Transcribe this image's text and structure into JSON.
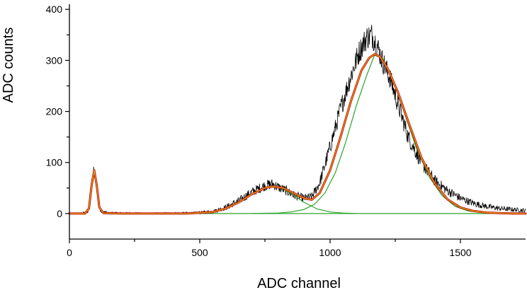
{
  "chart_data": {
    "type": "line",
    "xlabel": "ADC channel",
    "ylabel": "ADC counts",
    "xlim": [
      0,
      1750
    ],
    "ylim": [
      -50,
      410
    ],
    "x_ticks": [
      0,
      500,
      1000,
      1500
    ],
    "x_tick_labels": [
      "0",
      "500",
      "1000",
      "1500"
    ],
    "x_minor_ticks": [
      250,
      750,
      1250
    ],
    "y_ticks": [
      0,
      100,
      200,
      300,
      400
    ],
    "y_tick_labels": [
      "0",
      "100",
      "200",
      "300",
      "400"
    ],
    "y_minor_ticks": [
      50,
      150,
      250,
      350
    ],
    "grid": false,
    "series": [
      {
        "role": "data-histogram",
        "color": "#000000",
        "x": [
          0,
          40,
          70,
          82,
          90,
          95,
          100,
          108,
          120,
          150,
          300,
          480,
          550,
          600,
          650,
          700,
          750,
          780,
          800,
          830,
          860,
          900,
          930,
          960,
          1000,
          1040,
          1080,
          1110,
          1140,
          1160,
          1180,
          1200,
          1230,
          1260,
          1300,
          1350,
          1400,
          1450,
          1500,
          1550,
          1600,
          1650,
          1700,
          1750
        ],
        "y": [
          0,
          0,
          2,
          40,
          80,
          92,
          70,
          30,
          4,
          1,
          0,
          1,
          4,
          12,
          25,
          42,
          55,
          58,
          52,
          45,
          36,
          30,
          33,
          60,
          130,
          205,
          270,
          315,
          345,
          350,
          330,
          300,
          265,
          215,
          150,
          100,
          65,
          45,
          30,
          20,
          14,
          10,
          8,
          6
        ]
      },
      {
        "role": "total-fit",
        "color": "#c80000",
        "x": [
          0,
          60,
          75,
          85,
          95,
          105,
          115,
          130,
          200,
          450,
          550,
          600,
          650,
          700,
          750,
          780,
          820,
          860,
          900,
          930,
          960,
          1000,
          1040,
          1080,
          1120,
          1150,
          1170,
          1190,
          1220,
          1260,
          1300,
          1350,
          1400,
          1450,
          1500,
          1550,
          1600,
          1650,
          1700,
          1750
        ],
        "y": [
          0,
          0,
          10,
          55,
          85,
          55,
          12,
          1,
          0,
          0,
          3,
          10,
          22,
          38,
          50,
          53,
          50,
          40,
          30,
          27,
          40,
          85,
          150,
          220,
          280,
          305,
          312,
          308,
          285,
          238,
          180,
          110,
          60,
          28,
          12,
          5,
          2,
          1,
          0,
          0
        ]
      },
      {
        "role": "fit-component-1",
        "color": "#2aa52a",
        "x": [
          0,
          60,
          75,
          85,
          95,
          105,
          115,
          130,
          200,
          1750
        ],
        "y": [
          0,
          0,
          10,
          55,
          85,
          55,
          12,
          1,
          0,
          0
        ]
      },
      {
        "role": "fit-component-2",
        "color": "#2aa52a",
        "x": [
          400,
          500,
          550,
          600,
          650,
          700,
          750,
          780,
          820,
          860,
          900,
          950,
          1000,
          1050,
          1100
        ],
        "y": [
          0,
          1,
          3,
          10,
          22,
          38,
          50,
          53,
          48,
          36,
          22,
          9,
          3,
          1,
          0
        ]
      },
      {
        "role": "fit-component-3",
        "color": "#2aa52a",
        "x": [
          700,
          800,
          850,
          900,
          940,
          980,
          1020,
          1060,
          1100,
          1140,
          1170,
          1200,
          1240,
          1280,
          1330,
          1380,
          1430,
          1480,
          1530,
          1600,
          1700
        ],
        "y": [
          0,
          1,
          3,
          8,
          18,
          40,
          80,
          140,
          210,
          270,
          310,
          305,
          265,
          205,
          130,
          72,
          35,
          14,
          5,
          1,
          0
        ]
      },
      {
        "role": "fit-overlay",
        "color": "#d4a020",
        "x": [
          0,
          60,
          75,
          85,
          95,
          105,
          115,
          130,
          200,
          450,
          550,
          600,
          650,
          700,
          750,
          780,
          820,
          860,
          900,
          930,
          960,
          1000,
          1040,
          1080,
          1120,
          1150,
          1170,
          1190,
          1220,
          1260,
          1300,
          1350,
          1400,
          1450,
          1500,
          1550,
          1600,
          1650,
          1700,
          1750
        ],
        "y": [
          0,
          0,
          10,
          55,
          85,
          55,
          12,
          1,
          0,
          0,
          3,
          10,
          22,
          38,
          50,
          53,
          50,
          40,
          30,
          27,
          40,
          85,
          150,
          220,
          280,
          305,
          312,
          308,
          285,
          238,
          180,
          110,
          60,
          28,
          12,
          5,
          2,
          1,
          0,
          0
        ]
      }
    ]
  }
}
